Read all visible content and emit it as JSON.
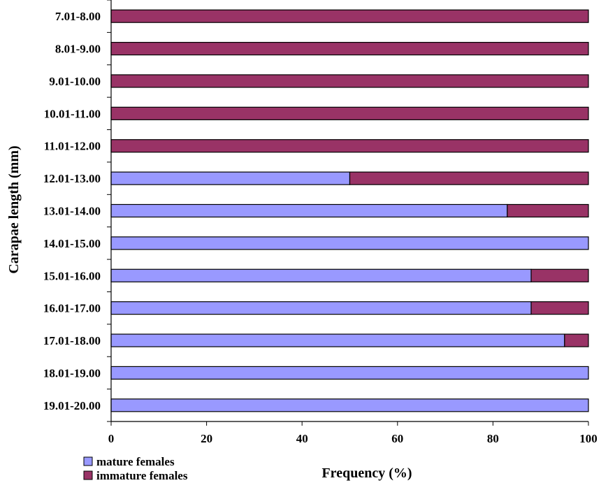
{
  "chart_data": {
    "type": "bar",
    "orientation": "horizontal",
    "stacked": true,
    "categories": [
      "7.01-8.00",
      "8.01-9.00",
      "9.01-10.00",
      "10.01-11.00",
      "11.01-12.00",
      "12.01-13.00",
      "13.01-14.00",
      "14.01-15.00",
      "15.01-16.00",
      "16.01-17.00",
      "17.01-18.00",
      "18.01-19.00",
      "19.01-20.00"
    ],
    "series": [
      {
        "name": "mature females",
        "color": "#9999ff",
        "values": [
          0,
          0,
          0,
          0,
          0,
          50,
          83,
          100,
          88,
          88,
          95,
          100,
          100
        ]
      },
      {
        "name": "immature females",
        "color": "#993366",
        "values": [
          100,
          100,
          100,
          100,
          100,
          50,
          17,
          0,
          12,
          12,
          5,
          0,
          0
        ]
      }
    ],
    "xlabel": "Frequency (%)",
    "ylabel": "Carapae length (mm)",
    "xlim": [
      0,
      100
    ],
    "xticks": [
      "0",
      "20",
      "40",
      "60",
      "80",
      "100"
    ],
    "grid": false,
    "legend_position": "bottom-left"
  }
}
